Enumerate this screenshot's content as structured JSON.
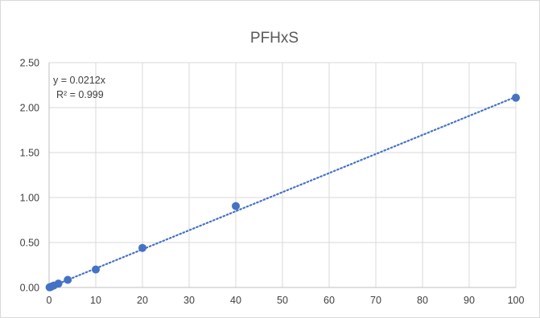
{
  "chart_data": {
    "type": "scatter",
    "title": "PFHxS",
    "xlabel": "",
    "ylabel": "",
    "xlim": [
      0,
      100
    ],
    "ylim": [
      0,
      2.5
    ],
    "grid": true,
    "x_ticks": [
      "0",
      "10",
      "20",
      "30",
      "40",
      "50",
      "60",
      "70",
      "80",
      "90",
      "100"
    ],
    "y_ticks": [
      "0.00",
      "0.50",
      "1.00",
      "1.50",
      "2.00",
      "2.50"
    ],
    "series": [
      {
        "color": "#4472c4",
        "points": [
          {
            "x": 0.1,
            "y": 0.002
          },
          {
            "x": 0.25,
            "y": 0.005
          },
          {
            "x": 0.5,
            "y": 0.01
          },
          {
            "x": 1,
            "y": 0.021
          },
          {
            "x": 2,
            "y": 0.043
          },
          {
            "x": 4,
            "y": 0.085
          },
          {
            "x": 10,
            "y": 0.2
          },
          {
            "x": 20,
            "y": 0.44
          },
          {
            "x": 40,
            "y": 0.905
          },
          {
            "x": 100,
            "y": 2.11
          }
        ]
      }
    ],
    "trendline": {
      "slope": 0.0212,
      "style": "dotted",
      "color": "#4472c4",
      "equation_label": "y = 0.0212x",
      "r2_label": "R² = 0.999"
    }
  }
}
